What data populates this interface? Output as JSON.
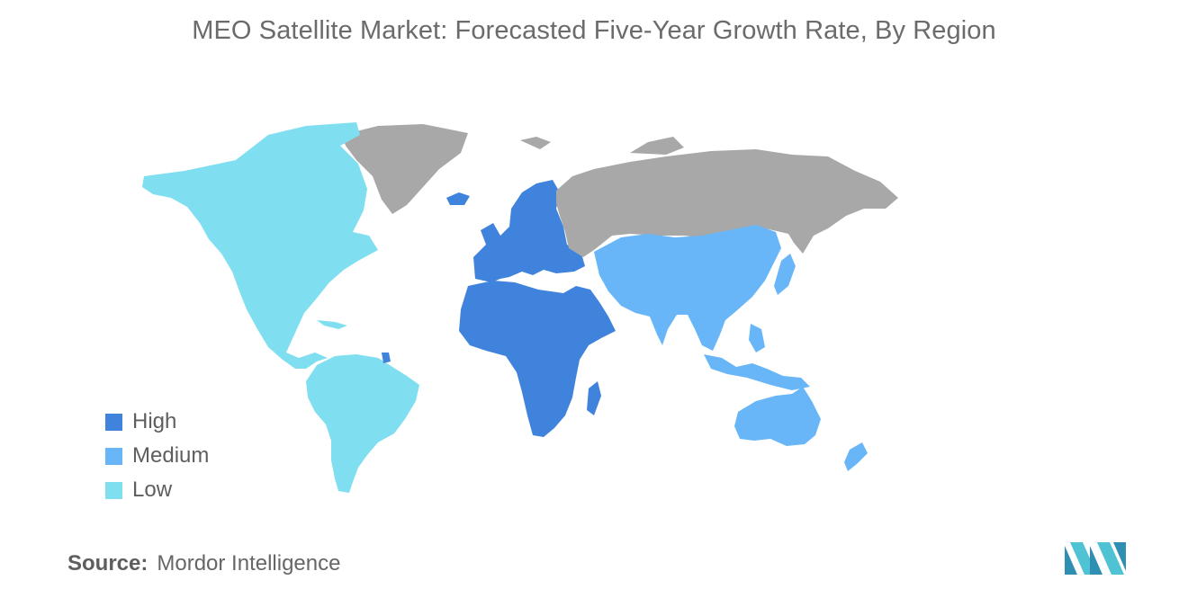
{
  "title": "MEO Satellite Market: Forecasted Five-Year Growth Rate, By Region",
  "legend": [
    {
      "label": "High",
      "color": "#3f83dc"
    },
    {
      "label": "Medium",
      "color": "#68b6f7"
    },
    {
      "label": "Low",
      "color": "#7fdff0"
    }
  ],
  "no_data_color": "#a8a8a8",
  "source": {
    "label": "Source:",
    "text": "Mordor Intelligence"
  },
  "logo": "mordor-intelligence-logo"
}
